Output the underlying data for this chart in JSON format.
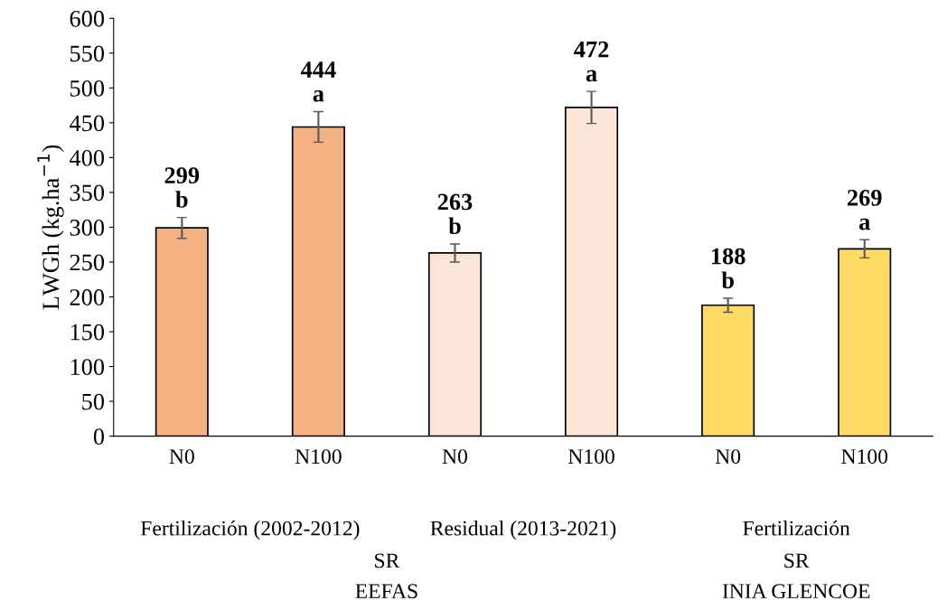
{
  "chart_data": {
    "type": "bar",
    "ylabel": "LWGh (kg.ha$^{−1}$)",
    "categories": [
      "N0",
      "N100",
      "N0",
      "N100",
      "N0",
      "N100"
    ],
    "values": [
      299,
      444,
      263,
      472,
      188,
      269
    ],
    "colors": [
      "#f4b183",
      "#f4b183",
      "#fbe5d6",
      "#fbe5d6",
      "#ffd966",
      "#ffd966"
    ],
    "errors": [
      15,
      22,
      13,
      23,
      10,
      13
    ],
    "value_labels": [
      "299\nb",
      "444\na",
      "263\nb",
      "472\na",
      "188\nb",
      "269\na"
    ],
    "ylim": [
      0,
      600
    ],
    "yticks": [
      0,
      50,
      100,
      150,
      200,
      250,
      300,
      350,
      400,
      450,
      500,
      550,
      600
    ],
    "grid": false,
    "legend": false,
    "annotations": [
      "Fertilización (2002-2012)",
      "Residual (2013-2021)",
      "Fertilización",
      "SR",
      "SR",
      "EEFAS",
      "INIA GLENCOE"
    ]
  }
}
